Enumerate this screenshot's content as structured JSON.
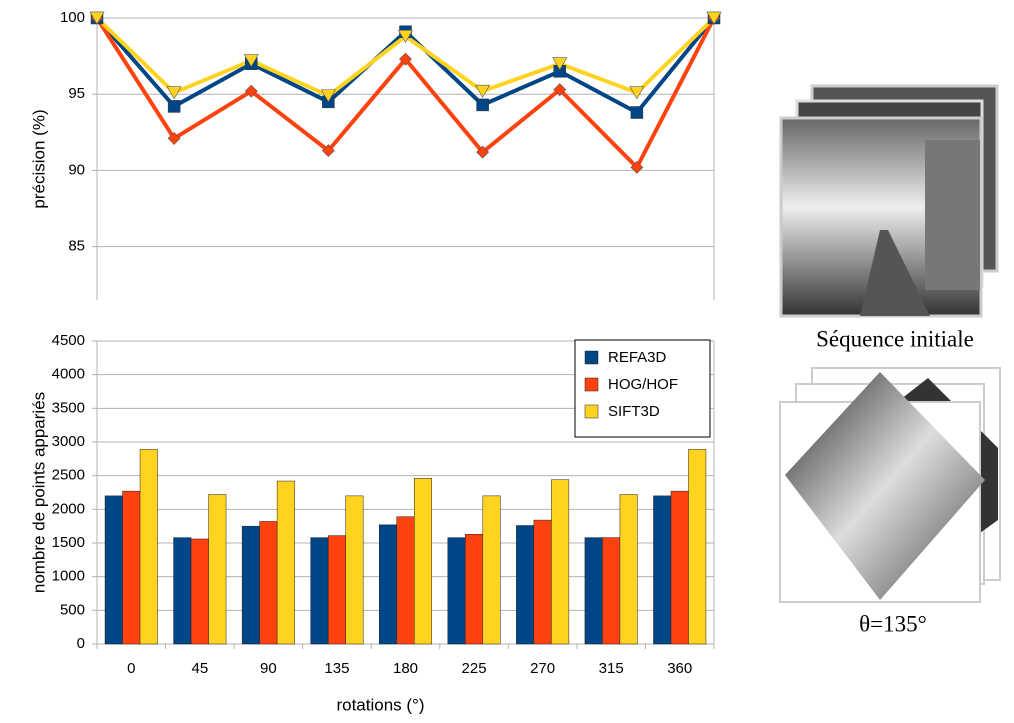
{
  "chart_data": [
    {
      "type": "line",
      "ylabel": "précision (%)",
      "categories": [
        null,
        null,
        null,
        null,
        null,
        null,
        null,
        null,
        null
      ],
      "ylim": [
        81.5,
        100
      ],
      "yticks": [
        85,
        90,
        95,
        100
      ],
      "grid": true,
      "series": [
        {
          "name": "REFA3D",
          "color": "#004586",
          "marker": "square",
          "values": [
            100,
            94.2,
            97.0,
            94.5,
            99.1,
            94.3,
            96.5,
            93.8,
            100
          ]
        },
        {
          "name": "HOG/HOF",
          "color": "#ff420e",
          "marker": "diamond",
          "values": [
            100,
            92.1,
            95.2,
            91.3,
            97.3,
            91.2,
            95.3,
            90.2,
            100
          ]
        },
        {
          "name": "SIFT3D",
          "color": "#ffd320",
          "marker": "triangle-down",
          "values": [
            100,
            95.1,
            97.2,
            94.9,
            98.8,
            95.2,
            97.0,
            95.1,
            100
          ]
        }
      ]
    },
    {
      "type": "bar",
      "ylabel": "nombre de points appariés",
      "xlabel": "rotations (°)",
      "categories": [
        "0",
        "45",
        "90",
        "135",
        "180",
        "225",
        "270",
        "315",
        "360"
      ],
      "ylim": [
        0,
        4500
      ],
      "yticks": [
        0,
        500,
        1000,
        1500,
        2000,
        2500,
        3000,
        3500,
        4000,
        4500
      ],
      "grid": true,
      "legend": "top-right",
      "series": [
        {
          "name": "REFA3D",
          "color": "#004586",
          "values": [
            2200,
            1580,
            1750,
            1580,
            1770,
            1580,
            1760,
            1580,
            2200
          ]
        },
        {
          "name": "HOG/HOF",
          "color": "#ff420e",
          "values": [
            2270,
            1560,
            1820,
            1610,
            1890,
            1630,
            1840,
            1580,
            2270
          ]
        },
        {
          "name": "SIFT3D",
          "color": "#ffd320",
          "values": [
            2890,
            2220,
            2420,
            2200,
            2460,
            2200,
            2440,
            2220,
            2890
          ]
        }
      ]
    }
  ],
  "panels": [
    {
      "caption": "Séquence initiale"
    },
    {
      "caption": "θ=135°"
    }
  ]
}
